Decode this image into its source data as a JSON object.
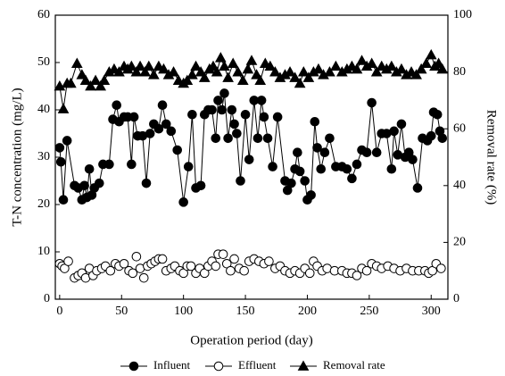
{
  "chart_data": {
    "type": "scatter",
    "x_label": "Operation period (day)",
    "y_label": "T-N concentration (mg/L)",
    "y2_label": "Removal rate (%)",
    "xlim": [
      -3.5,
      313.5
    ],
    "xticks": [
      0,
      50,
      100,
      150,
      200,
      250,
      300
    ],
    "ylim": [
      0,
      60
    ],
    "yticks": [
      0,
      10,
      20,
      30,
      40,
      50,
      60
    ],
    "y2lim": [
      0,
      100
    ],
    "y2ticks": [
      0,
      20,
      40,
      60,
      80,
      100
    ],
    "grid": false,
    "legend": "bottom",
    "series": [
      {
        "name": "Influent",
        "color": "#000000",
        "marker": "circle",
        "filled": true,
        "connected": true,
        "x": [
          0,
          1,
          3,
          6,
          12,
          15,
          18,
          20,
          22,
          24,
          26,
          28,
          32,
          35,
          40,
          43,
          46,
          48,
          52,
          55,
          58,
          60,
          63,
          67,
          70,
          73,
          76,
          80,
          83,
          86,
          90,
          95,
          100,
          104,
          107,
          110,
          114,
          117,
          120,
          123,
          126,
          128,
          131,
          133,
          136,
          139,
          141,
          143,
          146,
          150,
          153,
          157,
          160,
          163,
          165,
          168,
          172,
          176,
          182,
          184,
          187,
          190,
          192,
          194,
          198,
          200,
          203,
          206,
          208,
          211,
          214,
          218,
          223,
          228,
          232,
          236,
          240,
          244,
          248,
          252,
          256,
          260,
          264,
          268,
          270,
          273,
          276,
          279,
          282,
          285,
          289,
          293,
          297,
          300,
          302,
          305,
          307,
          309
        ],
        "values": [
          32,
          29,
          21,
          33.5,
          24,
          23.5,
          21,
          24,
          21.5,
          27.5,
          22,
          23.5,
          24.5,
          28.5,
          28.5,
          38,
          41,
          37.5,
          38.5,
          38.5,
          28.5,
          38.5,
          34.5,
          34.5,
          24.5,
          35,
          37,
          36,
          41,
          37,
          35.5,
          31.5,
          20.5,
          28,
          39,
          23.5,
          24,
          39,
          40,
          40,
          34,
          42,
          40,
          43.5,
          34,
          40,
          37,
          35,
          25,
          39,
          29.5,
          42,
          34,
          42,
          38.5,
          34,
          28,
          38.5,
          25,
          23,
          24.5,
          27.5,
          31,
          27,
          25,
          21,
          22,
          37.5,
          32,
          27.5,
          31,
          34,
          28,
          28,
          27.5,
          25.5,
          28.5,
          31.5,
          31,
          41.5,
          31,
          35,
          35,
          27.5,
          35.5,
          30.5,
          37,
          30,
          31,
          29.5,
          23.5,
          34,
          33.5,
          34.5,
          39.5,
          39,
          35.5,
          34
        ]
      },
      {
        "name": "Effluent",
        "color": "#000000",
        "marker": "circle",
        "filled": false,
        "connected": false,
        "x": [
          0,
          2,
          4,
          7,
          12,
          15,
          18,
          21,
          24,
          27,
          30,
          34,
          37,
          41,
          45,
          48,
          52,
          56,
          59,
          62,
          65,
          68,
          71,
          74,
          77,
          80,
          83,
          86,
          90,
          93,
          97,
          100,
          103,
          106,
          110,
          113,
          117,
          120,
          123,
          126,
          128,
          132,
          135,
          138,
          141,
          145,
          149,
          153,
          157,
          161,
          165,
          169,
          174,
          178,
          182,
          186,
          190,
          194,
          198,
          202,
          205,
          208,
          212,
          216,
          222,
          228,
          232,
          236,
          240,
          244,
          248,
          252,
          256,
          260,
          265,
          270,
          275,
          280,
          285,
          290,
          295,
          298,
          301,
          304,
          308
        ],
        "values": [
          7.5,
          7,
          6.5,
          8,
          4.5,
          5,
          5.5,
          4.5,
          6.5,
          5,
          6,
          6.5,
          7,
          6,
          7.5,
          7,
          7.5,
          6,
          5.5,
          9,
          6.5,
          4.5,
          7,
          7.5,
          8,
          8.5,
          8.5,
          6,
          6.5,
          7,
          6,
          5.5,
          7,
          7,
          5.5,
          6.5,
          5.5,
          7,
          8,
          7,
          9.5,
          9.5,
          7.5,
          6,
          8.5,
          6.5,
          6,
          8,
          8.5,
          8,
          7.5,
          8,
          6.5,
          7,
          6,
          5.5,
          6,
          5.5,
          6.5,
          5.5,
          8,
          7,
          6,
          6.5,
          6,
          6,
          5.5,
          5.5,
          5,
          6.5,
          6,
          7.5,
          7,
          6.5,
          7,
          6.5,
          6,
          6.5,
          6,
          6,
          6,
          5.5,
          6,
          7.5,
          6.5
        ]
      },
      {
        "name": "Removal rate",
        "color": "#000000",
        "marker": "triangle",
        "filled": true,
        "connected": true,
        "axis": "y2",
        "x": [
          0,
          3,
          6,
          9,
          14,
          18,
          21,
          25,
          29,
          33,
          36,
          40,
          44,
          48,
          52,
          55,
          58,
          62,
          65,
          69,
          72,
          76,
          80,
          84,
          88,
          92,
          96,
          100,
          103,
          107,
          110,
          114,
          117,
          121,
          124,
          127,
          130,
          133,
          136,
          140,
          144,
          148,
          152,
          155,
          159,
          162,
          166,
          170,
          174,
          178,
          182,
          186,
          190,
          194,
          197,
          201,
          205,
          209,
          213,
          218,
          223,
          228,
          232,
          236,
          240,
          244,
          248,
          252,
          256,
          260,
          264,
          268,
          272,
          276,
          280,
          284,
          288,
          292,
          296,
          300,
          303,
          306,
          309
        ],
        "values": [
          75,
          67,
          76,
          76,
          83,
          79,
          77,
          75,
          77,
          75,
          77,
          80,
          81,
          80,
          82,
          81,
          82,
          80,
          82,
          80,
          82,
          79,
          82,
          81,
          79,
          80,
          77,
          76,
          77,
          79,
          82,
          80,
          78,
          81,
          82,
          80,
          85,
          82,
          78,
          83,
          80,
          77,
          81,
          84,
          79,
          77,
          83,
          82,
          80,
          78,
          79,
          80,
          78,
          76,
          80,
          78,
          80,
          81,
          79,
          80,
          82,
          80,
          81,
          82,
          81,
          84,
          82,
          83,
          80,
          82,
          81,
          82,
          80,
          81,
          79,
          80,
          79,
          81,
          83,
          86,
          82,
          83,
          81
        ]
      }
    ]
  }
}
